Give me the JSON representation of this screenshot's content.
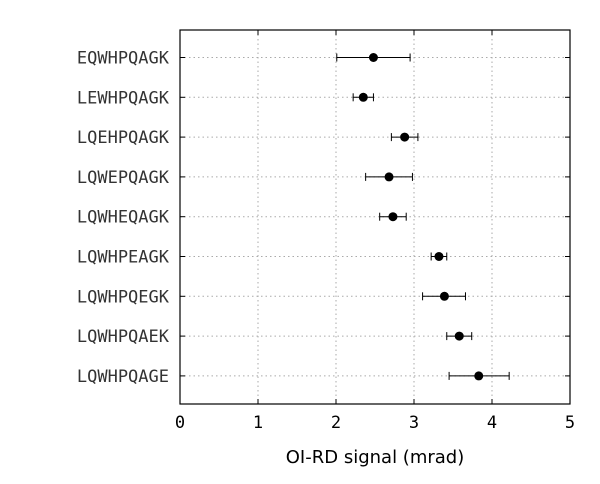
{
  "chart_data": {
    "type": "scatter",
    "orientation": "horizontal",
    "xlabel": "OI-RD signal (mrad)",
    "ylabel": "",
    "xlim": [
      0,
      5
    ],
    "xticks": [
      "0",
      "1",
      "2",
      "3",
      "4",
      "5"
    ],
    "grid": true,
    "categories": [
      "EQWHPQAGK",
      "LEWHPQAGK",
      "LQEHPQAGK",
      "LQWEPQAGK",
      "LQWHEQAGK",
      "LQWHPEAGK",
      "LQWHPQEGK",
      "LQWHPQAEK",
      "LQWHPQAGE"
    ],
    "values": [
      2.48,
      2.35,
      2.88,
      2.68,
      2.73,
      3.32,
      3.39,
      3.58,
      3.83
    ],
    "error_low": [
      2.01,
      2.22,
      2.71,
      2.38,
      2.56,
      3.22,
      3.11,
      3.42,
      3.45
    ],
    "error_high": [
      2.95,
      2.48,
      3.05,
      2.98,
      2.9,
      3.42,
      3.66,
      3.74,
      4.22
    ],
    "colors": {
      "marker": "#000000",
      "grid": "#aaaaaa",
      "axis": "#000000",
      "label": "#333333"
    }
  }
}
